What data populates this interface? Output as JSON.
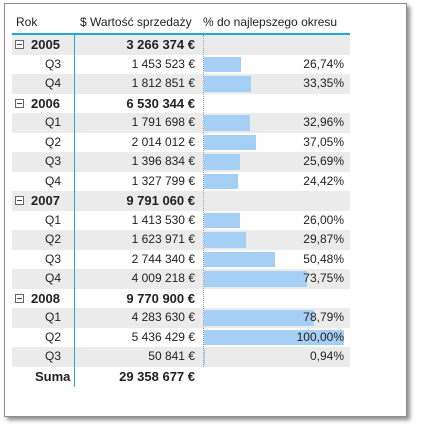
{
  "header": {
    "rok": "Rok",
    "value": "$ Wartość sprzedaży",
    "pct": "% do najlepszego okresu"
  },
  "groups": [
    {
      "year": "2005",
      "total": "3 266 374 €",
      "quarters": [
        {
          "q": "Q3",
          "value": "1 453 523 €",
          "pct_label": "26,74%",
          "pct": 26.74
        },
        {
          "q": "Q4",
          "value": "1 812 851 €",
          "pct_label": "33,35%",
          "pct": 33.35
        }
      ]
    },
    {
      "year": "2006",
      "total": "6 530 344 €",
      "quarters": [
        {
          "q": "Q1",
          "value": "1 791 698 €",
          "pct_label": "32,96%",
          "pct": 32.96
        },
        {
          "q": "Q2",
          "value": "2 014 012 €",
          "pct_label": "37,05%",
          "pct": 37.05
        },
        {
          "q": "Q3",
          "value": "1 396 834 €",
          "pct_label": "25,69%",
          "pct": 25.69
        },
        {
          "q": "Q4",
          "value": "1 327 799 €",
          "pct_label": "24,42%",
          "pct": 24.42
        }
      ]
    },
    {
      "year": "2007",
      "total": "9 791 060 €",
      "quarters": [
        {
          "q": "Q1",
          "value": "1 413 530 €",
          "pct_label": "26,00%",
          "pct": 26.0
        },
        {
          "q": "Q2",
          "value": "1 623 971 €",
          "pct_label": "29,87%",
          "pct": 29.87
        },
        {
          "q": "Q3",
          "value": "2 744 340 €",
          "pct_label": "50,48%",
          "pct": 50.48
        },
        {
          "q": "Q4",
          "value": "4 009 218 €",
          "pct_label": "73,75%",
          "pct": 73.75
        }
      ]
    },
    {
      "year": "2008",
      "total": "9 770 900 €",
      "quarters": [
        {
          "q": "Q1",
          "value": "4 283 630 €",
          "pct_label": "78,79%",
          "pct": 78.79
        },
        {
          "q": "Q2",
          "value": "5 436 429 €",
          "pct_label": "100,00%",
          "pct": 100.0
        },
        {
          "q": "Q3",
          "value": "50 841 €",
          "pct_label": "0,94%",
          "pct": 0.94
        }
      ]
    }
  ],
  "total": {
    "label": "Suma",
    "value": "29 358 677 €"
  },
  "colors": {
    "bar": "#a6cff5",
    "accent": "#1fa9d8",
    "row_shade": "#ebebeb"
  }
}
